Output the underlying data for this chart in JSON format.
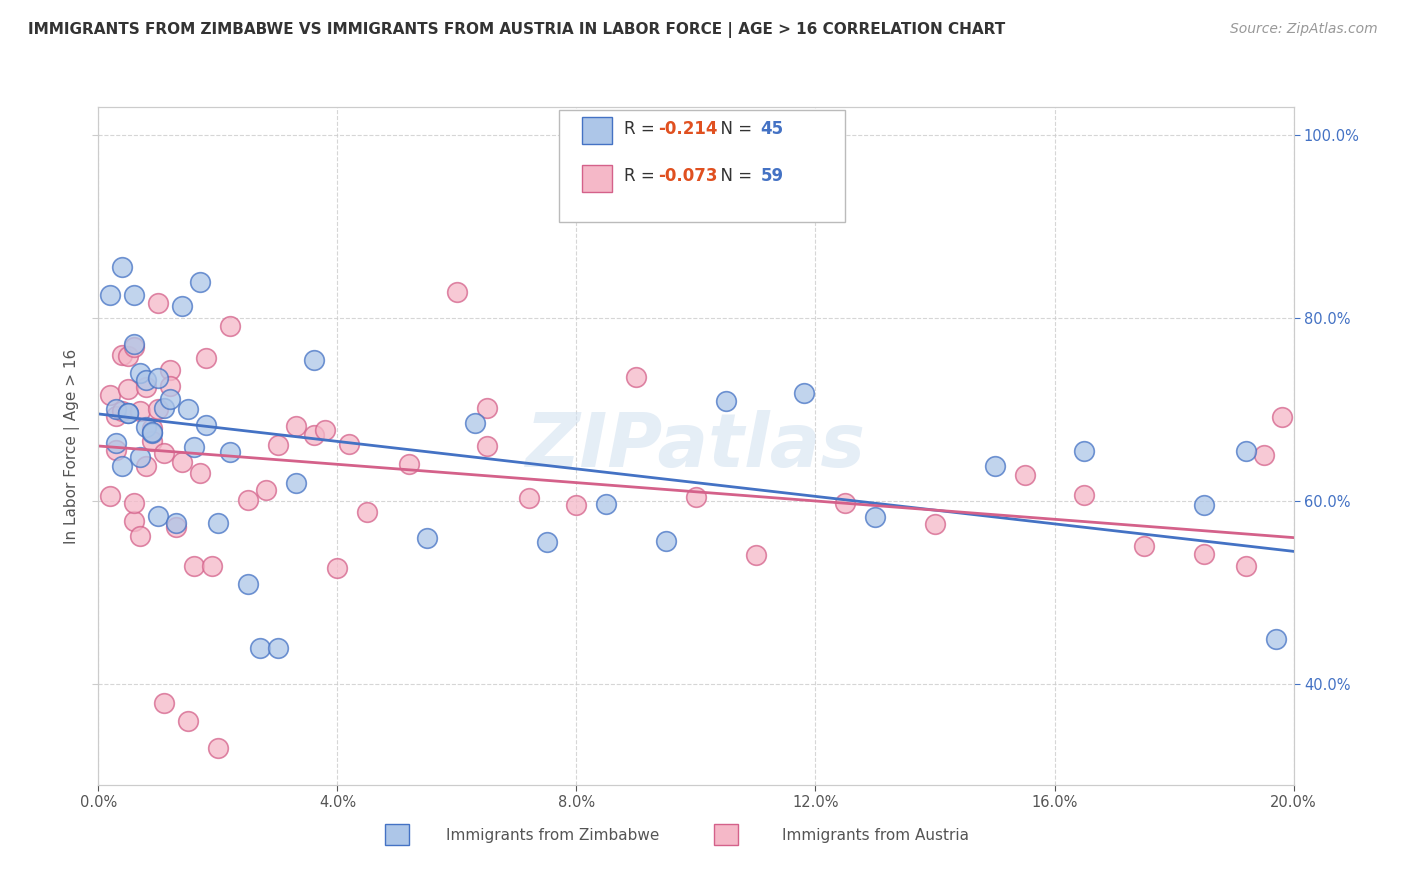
{
  "title": "IMMIGRANTS FROM ZIMBABWE VS IMMIGRANTS FROM AUSTRIA IN LABOR FORCE | AGE > 16 CORRELATION CHART",
  "source": "Source: ZipAtlas.com",
  "ylabel": "In Labor Force | Age > 16",
  "legend_labels": [
    "Immigrants from Zimbabwe",
    "Immigrants from Austria"
  ],
  "legend_R": [
    -0.214,
    -0.073
  ],
  "legend_N": [
    45,
    59
  ],
  "color_zimbabwe": "#adc6e8",
  "color_austria": "#f5b8c8",
  "color_zimbabwe_line": "#4472c4",
  "color_austria_line": "#d4618a",
  "watermark": "ZIPatlas",
  "xlim": [
    0.0,
    0.2
  ],
  "ylim": [
    0.29,
    1.03
  ],
  "xticks": [
    0.0,
    0.04,
    0.08,
    0.12,
    0.16,
    0.2
  ],
  "yticks": [
    0.4,
    0.6,
    0.8,
    1.0
  ],
  "xtick_labels": [
    "0.0%",
    "4.0%",
    "8.0%",
    "12.0%",
    "16.0%",
    "20.0%"
  ],
  "ytick_labels": [
    "40.0%",
    "60.0%",
    "80.0%",
    "100.0%"
  ],
  "title_fontsize": 11,
  "axis_label_fontsize": 11,
  "tick_fontsize": 10.5,
  "source_fontsize": 10,
  "background_color": "#ffffff",
  "grid_color": "#cccccc"
}
